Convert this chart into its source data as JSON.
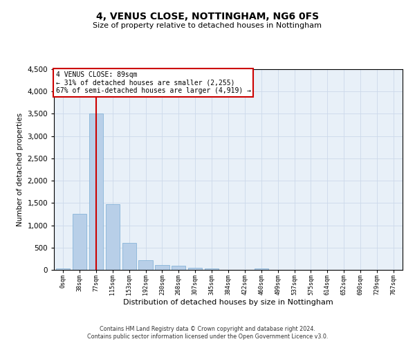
{
  "title": "4, VENUS CLOSE, NOTTINGHAM, NG6 0FS",
  "subtitle": "Size of property relative to detached houses in Nottingham",
  "xlabel": "Distribution of detached houses by size in Nottingham",
  "ylabel": "Number of detached properties",
  "bar_color": "#b8cfe8",
  "bar_edge_color": "#7aacd4",
  "grid_color": "#ccd9ea",
  "background_color": "#e8f0f8",
  "bin_labels": [
    "0sqm",
    "38sqm",
    "77sqm",
    "115sqm",
    "153sqm",
    "192sqm",
    "230sqm",
    "268sqm",
    "307sqm",
    "345sqm",
    "384sqm",
    "422sqm",
    "460sqm",
    "499sqm",
    "537sqm",
    "575sqm",
    "614sqm",
    "652sqm",
    "690sqm",
    "729sqm",
    "767sqm"
  ],
  "bar_values": [
    25,
    1260,
    3510,
    1480,
    600,
    225,
    115,
    88,
    48,
    25,
    6,
    0,
    38,
    0,
    0,
    0,
    0,
    0,
    0,
    0,
    0
  ],
  "property_bin_index": 2,
  "annotation_text": "4 VENUS CLOSE: 89sqm\n← 31% of detached houses are smaller (2,255)\n67% of semi-detached houses are larger (4,919) →",
  "annotation_box_color": "#ffffff",
  "annotation_box_edge": "#cc0000",
  "red_line_color": "#cc0000",
  "ylim": [
    0,
    4500
  ],
  "footer_line1": "Contains HM Land Registry data © Crown copyright and database right 2024.",
  "footer_line2": "Contains public sector information licensed under the Open Government Licence v3.0."
}
